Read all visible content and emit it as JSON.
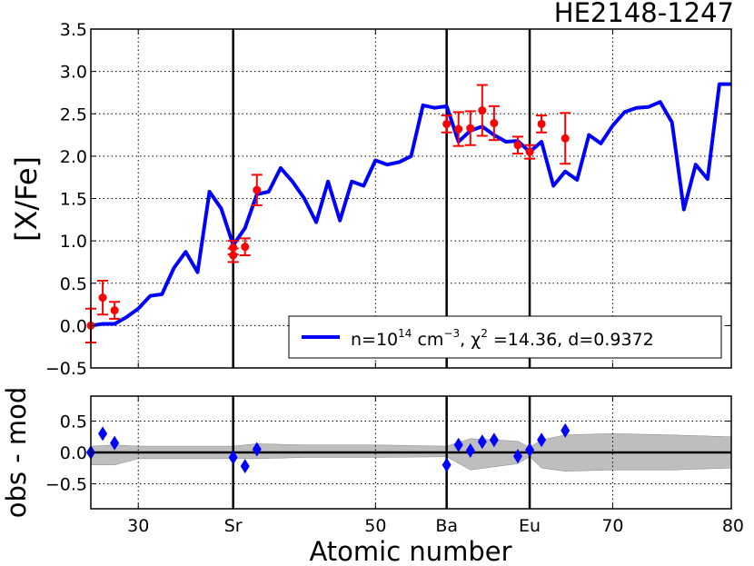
{
  "chart_data": [
    {
      "type": "line",
      "title": "HE2148-1247",
      "ylabel": "[X/Fe]",
      "xlim": [
        26,
        80
      ],
      "ylim": [
        -0.5,
        3.5
      ],
      "grid": true,
      "legend_position": "bottom-right",
      "yticks": [
        "3.5",
        "3.0",
        "2.5",
        "2.0",
        "1.5",
        "1.0",
        "0.5",
        "0.0",
        "−0.5"
      ],
      "vlines": [
        38,
        56,
        63
      ],
      "series": [
        {
          "name_parts": [
            "n=10",
            "14",
            " cm",
            "−3",
            ", χ",
            "2",
            " =14.36, d=0.9372"
          ],
          "color": "#0000ff",
          "x": [
            26,
            27,
            28,
            29,
            30,
            31,
            32,
            33,
            34,
            35,
            36,
            37,
            38,
            39,
            40,
            41,
            42,
            43,
            44,
            45,
            46,
            47,
            48,
            49,
            50,
            51,
            52,
            53,
            54,
            55,
            56,
            57,
            58,
            59,
            60,
            61,
            62,
            63,
            64,
            65,
            66,
            67,
            68,
            69,
            70,
            71,
            72,
            73,
            74,
            75,
            76,
            77,
            78,
            79,
            80
          ],
          "y": [
            0.0,
            0.02,
            0.02,
            0.1,
            0.2,
            0.35,
            0.37,
            0.68,
            0.87,
            0.63,
            1.58,
            1.38,
            0.95,
            1.15,
            1.55,
            1.58,
            1.86,
            1.7,
            1.5,
            1.22,
            1.7,
            1.24,
            1.7,
            1.65,
            1.95,
            1.9,
            1.93,
            2.0,
            2.6,
            2.57,
            2.59,
            2.17,
            2.3,
            2.35,
            2.25,
            2.17,
            2.18,
            2.05,
            2.17,
            1.65,
            1.82,
            1.72,
            2.25,
            2.15,
            2.36,
            2.52,
            2.57,
            2.58,
            2.64,
            2.4,
            1.37,
            1.9,
            1.73,
            2.85,
            2.85
          ]
        }
      ],
      "observations": {
        "color": "#ff0000",
        "x": [
          26,
          27,
          28,
          38,
          38,
          39,
          40,
          56,
          57,
          58,
          59,
          60,
          62,
          63,
          64,
          66
        ],
        "y": [
          0.0,
          0.33,
          0.18,
          0.83,
          0.92,
          0.93,
          1.6,
          2.38,
          2.32,
          2.33,
          2.54,
          2.39,
          2.13,
          2.05,
          2.38,
          2.21
        ],
        "err": [
          0.2,
          0.2,
          0.1,
          0.08,
          0.08,
          0.1,
          0.18,
          0.1,
          0.2,
          0.2,
          0.3,
          0.2,
          0.1,
          0.08,
          0.1,
          0.3
        ]
      }
    },
    {
      "type": "scatter",
      "xlabel": "Atomic number",
      "ylabel": "obs - mod",
      "xlim": [
        26,
        80
      ],
      "ylim": [
        -0.9,
        0.9
      ],
      "grid": true,
      "xticks": [
        {
          "value": 30,
          "label": "30"
        },
        {
          "value": 38,
          "label": "Sr"
        },
        {
          "value": 50,
          "label": "50"
        },
        {
          "value": 56,
          "label": "Ba"
        },
        {
          "value": 63,
          "label": "Eu"
        },
        {
          "value": 70,
          "label": "70"
        },
        {
          "value": 80,
          "label": "80"
        }
      ],
      "yticks": [
        "0.5",
        "0.0",
        "−0.5"
      ],
      "vlines": [
        38,
        56,
        63
      ],
      "residuals": {
        "color": "#0000ff",
        "x": [
          26,
          27,
          28,
          38,
          39,
          40,
          56,
          57,
          58,
          59,
          60,
          62,
          63,
          64,
          66
        ],
        "y": [
          0.0,
          0.3,
          0.15,
          -0.08,
          -0.22,
          0.05,
          -0.2,
          0.12,
          0.03,
          0.17,
          0.2,
          -0.06,
          0.04,
          0.2,
          0.35
        ]
      },
      "band": {
        "color": "#bebebe",
        "x": [
          26,
          28,
          30,
          38,
          40,
          44,
          50,
          56,
          58,
          62,
          63,
          64,
          66,
          70,
          75,
          80
        ],
        "upper": [
          0.1,
          0.12,
          0.1,
          0.1,
          0.14,
          0.12,
          0.12,
          0.1,
          0.22,
          0.18,
          0.08,
          0.2,
          0.28,
          0.3,
          0.28,
          0.25
        ],
        "lower": [
          -0.2,
          -0.2,
          -0.1,
          -0.1,
          -0.1,
          -0.08,
          -0.08,
          -0.07,
          -0.28,
          -0.18,
          -0.07,
          -0.25,
          -0.3,
          -0.28,
          -0.28,
          -0.25
        ]
      }
    }
  ]
}
